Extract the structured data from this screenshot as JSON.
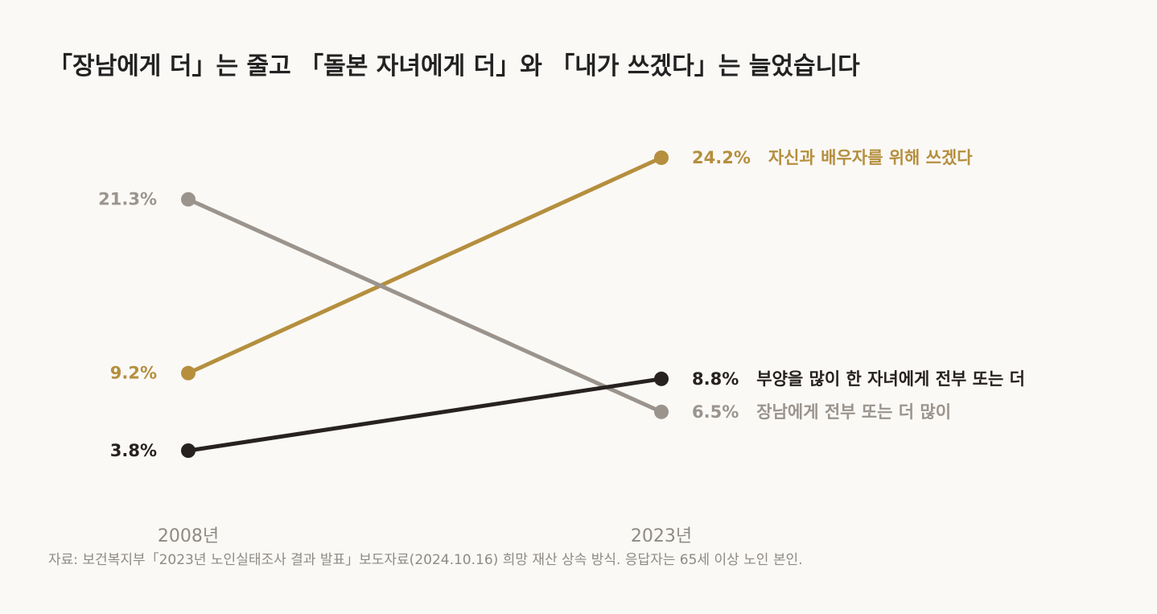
{
  "chart_data": {
    "type": "line",
    "title": "「장남에게 더」는 줄고 「돌본 자녀에게 더」와 「내가 쓰겠다」는 늘었습니다",
    "x": [
      "2008년",
      "2023년"
    ],
    "ylim": [
      0,
      30
    ],
    "series": [
      {
        "name": "자신과 배우자를 위해 쓰겠다",
        "values": [
          9.2,
          24.2
        ],
        "labels": [
          "9.2%",
          "24.2%"
        ],
        "color": "#b58f3e"
      },
      {
        "name": "장남에게 전부 또는 더 많이",
        "values": [
          21.3,
          6.5
        ],
        "labels": [
          "21.3%",
          "6.5%"
        ],
        "color": "#9b948d"
      },
      {
        "name": "부양을 많이 한 자녀에게 전부 또는 더",
        "values": [
          3.8,
          8.8
        ],
        "labels": [
          "3.8%",
          "8.8%"
        ],
        "color": "#272220"
      }
    ],
    "source": "자료: 보건복지부「2023년 노인실태조사 결과 발표」보도자료(2024.10.16) 희망 재산 상속 방식. 응답자는 65세 이상 노인 본인."
  }
}
